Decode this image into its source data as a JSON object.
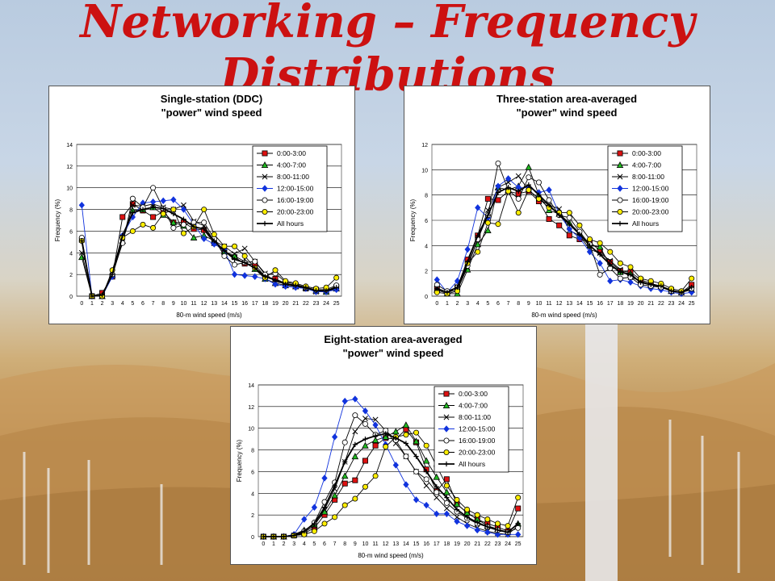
{
  "slide": {
    "title_line1": "Networking – Frequency",
    "title_line2": "Distributions"
  },
  "colors": {
    "title": "#cc1111",
    "red": "#dd1111",
    "green": "#22bb22",
    "blue": "#1133dd",
    "yellow": "#ffee00",
    "black": "#000000"
  },
  "chart_data": [
    {
      "type": "line",
      "title": "Single-station (DDC)",
      "subtitle": "\"power\" wind speed",
      "xlabel": "80-m wind speed (m/s)",
      "ylabel": "Frequency (%)",
      "ylim": [
        0,
        14
      ],
      "yticks": [
        0,
        2,
        4,
        6,
        8,
        10,
        12,
        14
      ],
      "x": [
        0,
        1,
        2,
        3,
        4,
        5,
        6,
        7,
        8,
        9,
        10,
        11,
        12,
        13,
        14,
        15,
        16,
        17,
        18,
        19,
        20,
        21,
        22,
        23,
        24,
        25
      ],
      "grid": true,
      "legend": "top-right",
      "series": [
        {
          "name": "0:00-3:00",
          "marker": "square",
          "values": [
            5.2,
            0,
            0.3,
            1.8,
            7.3,
            8.5,
            7.9,
            7.3,
            7.8,
            6.8,
            6.8,
            6.2,
            6.1,
            4.9,
            4.1,
            3.6,
            3.0,
            2.9,
            1.8,
            1.6,
            1.2,
            1.0,
            0.7,
            0.6,
            0.5,
            0.8
          ]
        },
        {
          "name": "4:00-7:00",
          "marker": "triangle",
          "values": [
            3.6,
            0,
            0,
            2.0,
            5.1,
            7.9,
            8.0,
            8.2,
            7.5,
            6.8,
            6.5,
            5.4,
            5.6,
            5.1,
            4.1,
            3.7,
            3.2,
            2.5,
            1.6,
            1.2,
            1.0,
            0.9,
            0.8,
            0.5,
            0.4,
            0.7
          ]
        },
        {
          "name": "8:00-11:00",
          "marker": "x",
          "values": [
            4.0,
            0,
            0,
            1.9,
            5.0,
            8.4,
            8.3,
            8.5,
            8.2,
            8.0,
            8.4,
            6.9,
            6.5,
            5.1,
            4.6,
            3.9,
            4.4,
            3.2,
            2.1,
            1.3,
            1.2,
            0.9,
            0.7,
            0.4,
            0.5,
            0.9
          ]
        },
        {
          "name": "12:00-15:00",
          "marker": "diamond",
          "values": [
            8.4,
            0,
            0,
            1.8,
            5.6,
            7.3,
            8.6,
            8.7,
            8.8,
            8.9,
            8.0,
            6.6,
            5.3,
            4.8,
            4.3,
            2.0,
            1.9,
            1.8,
            1.6,
            1.1,
            0.9,
            0.8,
            0.7,
            0.4,
            0.4,
            0.6
          ]
        },
        {
          "name": "16:00-19:00",
          "marker": "circle",
          "values": [
            5.4,
            0,
            0,
            2.0,
            4.9,
            9.0,
            8.2,
            10.0,
            8.1,
            6.3,
            6.6,
            6.8,
            6.8,
            5.3,
            3.7,
            2.9,
            3.1,
            3.2,
            2.0,
            2.1,
            1.3,
            1.1,
            0.8,
            0.6,
            0.6,
            1.0
          ]
        },
        {
          "name": "20:00-23:00",
          "marker": "circle-filled",
          "values": [
            5.1,
            0,
            0,
            2.4,
            5.4,
            6.0,
            6.6,
            6.3,
            7.6,
            8.0,
            5.8,
            6.4,
            8.0,
            5.7,
            4.6,
            4.6,
            3.7,
            2.6,
            1.7,
            2.4,
            1.4,
            1.2,
            0.9,
            0.7,
            0.8,
            1.7
          ]
        },
        {
          "name": "All hours",
          "marker": "plus",
          "values": [
            5.1,
            0,
            0.1,
            2.0,
            5.6,
            7.7,
            8.0,
            8.2,
            8.1,
            7.6,
            7.1,
            6.4,
            6.2,
            5.1,
            4.2,
            3.4,
            3.1,
            2.6,
            1.8,
            1.5,
            1.1,
            1.0,
            0.8,
            0.5,
            0.5,
            0.8
          ]
        }
      ]
    },
    {
      "type": "line",
      "title": "Three-station area-averaged",
      "subtitle": "\"power\" wind speed",
      "xlabel": "80-m wind speed (m/s)",
      "ylabel": "Frequency (%)",
      "ylim": [
        0,
        12
      ],
      "yticks": [
        0,
        2,
        4,
        6,
        8,
        10,
        12
      ],
      "x": [
        0,
        1,
        2,
        3,
        4,
        5,
        6,
        7,
        8,
        9,
        10,
        11,
        12,
        13,
        14,
        15,
        16,
        17,
        18,
        19,
        20,
        21,
        22,
        23,
        24,
        25
      ],
      "grid": true,
      "legend": "top-right",
      "series": [
        {
          "name": "0:00-3:00",
          "marker": "square",
          "values": [
            0.6,
            0.3,
            0.7,
            2.9,
            4.8,
            7.7,
            7.6,
            8.3,
            8.1,
            8.3,
            7.5,
            6.1,
            5.6,
            4.8,
            4.5,
            4.3,
            3.6,
            2.7,
            2.0,
            1.9,
            1.3,
            1.0,
            0.8,
            0.5,
            0.3,
            0.9
          ]
        },
        {
          "name": "4:00-7:00",
          "marker": "triangle",
          "values": [
            0.5,
            0.2,
            0.2,
            2.1,
            4.1,
            5.2,
            8.6,
            8.4,
            8.7,
            10.2,
            8.0,
            6.8,
            6.5,
            5.8,
            5.0,
            4.0,
            3.9,
            2.4,
            1.9,
            1.8,
            1.1,
            0.9,
            0.8,
            0.4,
            0.3,
            0.5
          ]
        },
        {
          "name": "8:00-11:00",
          "marker": "x",
          "values": [
            0.6,
            0.3,
            0.5,
            2.3,
            4.5,
            6.8,
            8.6,
            9.0,
            9.5,
            8.4,
            7.7,
            7.2,
            6.9,
            5.2,
            4.8,
            3.7,
            3.4,
            2.8,
            2.1,
            1.5,
            1.2,
            0.9,
            0.7,
            0.4,
            0.3,
            0.6
          ]
        },
        {
          "name": "12:00-15:00",
          "marker": "diamond",
          "values": [
            1.3,
            0.3,
            1.2,
            3.7,
            7.0,
            6.2,
            8.7,
            9.3,
            8.6,
            8.6,
            8.2,
            8.4,
            6.5,
            5.3,
            4.6,
            3.5,
            2.6,
            1.2,
            1.3,
            1.1,
            0.8,
            0.6,
            0.5,
            0.3,
            0.2,
            0.3
          ]
        },
        {
          "name": "16:00-19:00",
          "marker": "circle",
          "values": [
            0.9,
            0.4,
            0.7,
            2.4,
            4.5,
            6.4,
            10.5,
            8.4,
            7.7,
            9.4,
            9.0,
            7.6,
            6.4,
            6.2,
            5.1,
            4.1,
            1.7,
            2.2,
            1.4,
            1.5,
            0.9,
            0.8,
            0.7,
            0.4,
            0.3,
            0.6
          ]
        },
        {
          "name": "20:00-23:00",
          "marker": "circle-filled",
          "values": [
            0.3,
            0.2,
            0.4,
            2.6,
            3.5,
            5.8,
            5.7,
            8.3,
            6.6,
            8.4,
            7.7,
            7.0,
            6.6,
            6.6,
            5.6,
            4.5,
            4.2,
            3.5,
            2.6,
            2.3,
            1.4,
            1.2,
            1.0,
            0.6,
            0.4,
            1.4
          ]
        },
        {
          "name": "All hours",
          "marker": "plus",
          "values": [
            0.6,
            0.3,
            0.7,
            2.7,
            4.8,
            6.4,
            8.2,
            8.6,
            8.3,
            8.8,
            8.0,
            7.2,
            6.4,
            5.7,
            4.9,
            4.0,
            3.3,
            2.5,
            1.9,
            1.7,
            1.1,
            0.9,
            0.8,
            0.4,
            0.3,
            0.7
          ]
        }
      ]
    },
    {
      "type": "line",
      "title": "Eight-station area-averaged",
      "subtitle": "\"power\" wind speed",
      "xlabel": "80-m wind speed (m/s)",
      "ylabel": "Frequency (%)",
      "ylim": [
        0,
        14
      ],
      "yticks": [
        0,
        2,
        4,
        6,
        8,
        10,
        12,
        14
      ],
      "x": [
        0,
        1,
        2,
        3,
        4,
        5,
        6,
        7,
        8,
        9,
        10,
        11,
        12,
        13,
        14,
        15,
        16,
        17,
        18,
        19,
        20,
        21,
        22,
        23,
        24,
        25
      ],
      "grid": true,
      "legend": "top-right",
      "series": [
        {
          "name": "0:00-3:00",
          "marker": "square",
          "values": [
            0,
            0,
            0,
            0.1,
            0.3,
            0.8,
            2.0,
            3.4,
            4.9,
            5.2,
            7.0,
            8.4,
            9.1,
            9.0,
            9.9,
            8.7,
            6.2,
            4.2,
            5.3,
            3.0,
            2.2,
            1.6,
            1.2,
            0.9,
            0.5,
            2.6
          ]
        },
        {
          "name": "4:00-7:00",
          "marker": "triangle",
          "values": [
            0,
            0,
            0,
            0.2,
            0.6,
            1.1,
            2.3,
            3.8,
            5.6,
            7.4,
            8.4,
            8.9,
            9.2,
            9.7,
            10.3,
            8.8,
            7.0,
            5.5,
            4.1,
            3.0,
            2.2,
            1.6,
            1.0,
            0.7,
            0.4,
            1.2
          ]
        },
        {
          "name": "8:00-11:00",
          "marker": "x",
          "values": [
            0,
            0,
            0,
            0.1,
            0.4,
            1.0,
            2.5,
            4.4,
            6.9,
            9.7,
            10.9,
            10.8,
            9.8,
            8.6,
            7.4,
            6.0,
            4.7,
            3.6,
            2.6,
            1.8,
            1.2,
            0.8,
            0.5,
            0.3,
            0.2,
            1.0
          ]
        },
        {
          "name": "12:00-15:00",
          "marker": "diamond",
          "values": [
            0,
            0,
            0,
            0.2,
            1.6,
            2.7,
            5.4,
            9.2,
            12.5,
            12.7,
            11.6,
            10.3,
            8.5,
            6.6,
            4.8,
            3.4,
            2.9,
            2.1,
            2.1,
            1.4,
            1.0,
            0.6,
            0.4,
            0.2,
            0.2,
            0.2
          ]
        },
        {
          "name": "16:00-19:00",
          "marker": "circle",
          "values": [
            0,
            0,
            0,
            0.1,
            0.5,
            1.3,
            3.2,
            5.0,
            8.7,
            11.2,
            10.4,
            9.4,
            9.8,
            8.9,
            7.4,
            6.0,
            5.3,
            4.1,
            3.1,
            2.3,
            1.7,
            1.2,
            0.9,
            0.6,
            0.4,
            0.8
          ]
        },
        {
          "name": "20:00-23:00",
          "marker": "circle-filled",
          "values": [
            0,
            0,
            0,
            0.1,
            0.2,
            0.5,
            1.2,
            1.8,
            2.9,
            3.5,
            4.6,
            5.6,
            8.3,
            9.2,
            9.4,
            9.6,
            8.4,
            6.5,
            4.7,
            3.4,
            2.5,
            2.0,
            1.6,
            1.2,
            1.0,
            3.6
          ]
        },
        {
          "name": "All hours",
          "marker": "plus",
          "values": [
            0,
            0,
            0,
            0.1,
            0.5,
            1.2,
            2.7,
            4.7,
            6.9,
            8.5,
            9.0,
            9.3,
            9.5,
            9.1,
            8.6,
            7.4,
            6.0,
            4.6,
            3.6,
            2.5,
            1.8,
            1.3,
            0.9,
            0.6,
            0.4,
            1.2
          ]
        }
      ]
    }
  ]
}
